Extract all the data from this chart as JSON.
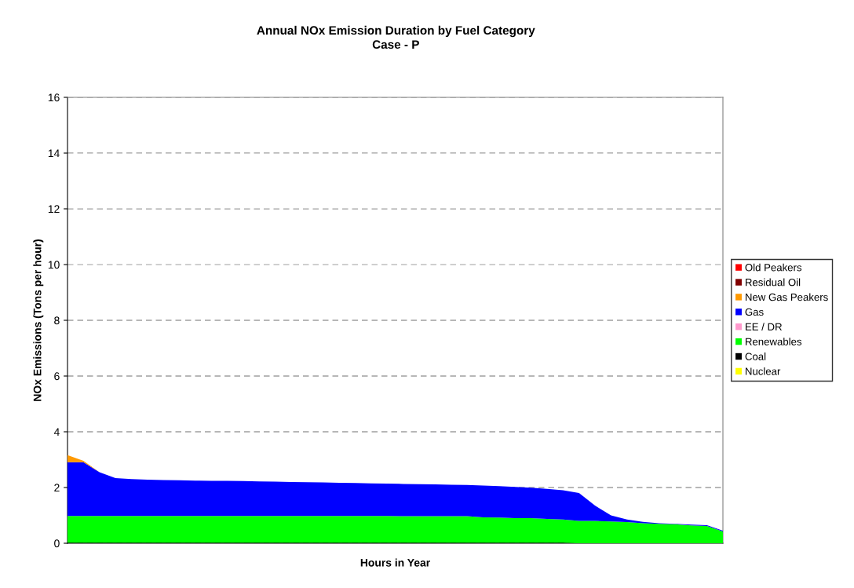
{
  "chart_data": {
    "type": "area",
    "stacked": true,
    "title": "Annual NOx Emission Duration by Fuel Category",
    "subtitle": "Case - P",
    "xlabel": "Hours in Year",
    "ylabel": "NOx Emissions (Tons per hour)",
    "categories": [
      null,
      null,
      null,
      null,
      null,
      null,
      null,
      null,
      null,
      null,
      null,
      null,
      null,
      null,
      null,
      null,
      null,
      null,
      null,
      null,
      null,
      null,
      null,
      null,
      null,
      null,
      null,
      null,
      null,
      null,
      null,
      null,
      null,
      null,
      null,
      null,
      null,
      null,
      null,
      null,
      null,
      null
    ],
    "ylim": [
      0,
      16
    ],
    "yticks": [
      0,
      2,
      4,
      6,
      8,
      10,
      12,
      14,
      16
    ],
    "grid": "y",
    "legend": "right",
    "series": [
      {
        "name": "Nuclear",
        "color": "#ffff00",
        "values": [
          null,
          null,
          null,
          null,
          null,
          null,
          null,
          null,
          null,
          null,
          null,
          null,
          null,
          null,
          null,
          null,
          null,
          null,
          null,
          null,
          null,
          null,
          null,
          null,
          null,
          null,
          null,
          null,
          null,
          null,
          null,
          null,
          null,
          null,
          null,
          null,
          null,
          null,
          null,
          null,
          null,
          null
        ]
      },
      {
        "name": "Coal",
        "color": "#000000",
        "values": [
          0.02,
          0.02,
          0.02,
          0.02,
          0.02,
          0.02,
          0.02,
          0.02,
          0.02,
          0.02,
          0.02,
          0.02,
          0.02,
          0.02,
          0.02,
          0.02,
          0.02,
          0.02,
          0.02,
          0.02,
          0.02,
          0.02,
          0.02,
          0.02,
          0.02,
          0.02,
          0.02,
          0.02,
          0.02,
          0.02,
          0.02,
          0.02,
          0,
          0,
          0,
          0,
          0,
          0,
          0,
          0,
          0,
          0
        ]
      },
      {
        "name": "Renewables",
        "color": "#00ff00",
        "values": [
          0.96,
          0.96,
          0.96,
          0.96,
          0.96,
          0.96,
          0.96,
          0.96,
          0.96,
          0.96,
          0.96,
          0.96,
          0.96,
          0.96,
          0.96,
          0.96,
          0.96,
          0.96,
          0.96,
          0.96,
          0.96,
          0.95,
          0.95,
          0.95,
          0.95,
          0.95,
          0.91,
          0.9,
          0.88,
          0.88,
          0.85,
          0.83,
          0.8,
          0.8,
          0.78,
          0.76,
          0.72,
          0.7,
          0.68,
          0.64,
          0.62,
          0.42
        ]
      },
      {
        "name": "EE / DR",
        "color": "#ff99cc",
        "values": [
          null,
          null,
          null,
          null,
          null,
          null,
          null,
          null,
          null,
          null,
          null,
          null,
          null,
          null,
          null,
          null,
          null,
          null,
          null,
          null,
          null,
          null,
          null,
          null,
          null,
          null,
          null,
          null,
          null,
          null,
          null,
          null,
          null,
          null,
          null,
          null,
          null,
          null,
          null,
          null,
          null,
          null
        ]
      },
      {
        "name": "Gas",
        "color": "#0000ff",
        "values": [
          1.93,
          1.93,
          1.57,
          1.36,
          1.32,
          1.3,
          1.29,
          1.28,
          1.27,
          1.26,
          1.26,
          1.25,
          1.24,
          1.23,
          1.22,
          1.21,
          1.2,
          1.19,
          1.18,
          1.17,
          1.16,
          1.16,
          1.15,
          1.14,
          1.13,
          1.12,
          1.14,
          1.13,
          1.12,
          1.09,
          1.08,
          1.05,
          1.0,
          0.55,
          0.22,
          0.09,
          0.05,
          0.02,
          0.02,
          0.03,
          0.03,
          0.03
        ]
      },
      {
        "name": "New Gas Peakers",
        "color": "#ff9900",
        "values": [
          0.25,
          0.05,
          0,
          0,
          0,
          0,
          0,
          0,
          0,
          0,
          0,
          0,
          0,
          0,
          0,
          0,
          0,
          0,
          0,
          0,
          0,
          0,
          0,
          0,
          0,
          0,
          0,
          0,
          0,
          0,
          0,
          0,
          0,
          0,
          0,
          0,
          0,
          0,
          0,
          0,
          0,
          0
        ]
      },
      {
        "name": "Residual Oil",
        "color": "#800000",
        "values": [
          null,
          null,
          null,
          null,
          null,
          null,
          null,
          null,
          null,
          null,
          null,
          null,
          null,
          null,
          null,
          null,
          null,
          null,
          null,
          null,
          null,
          null,
          null,
          null,
          null,
          null,
          null,
          null,
          null,
          null,
          null,
          null,
          null,
          null,
          null,
          null,
          null,
          null,
          null,
          null,
          null,
          null
        ]
      },
      {
        "name": "Old Peakers",
        "color": "#ff0000",
        "values": [
          null,
          null,
          null,
          null,
          null,
          null,
          null,
          null,
          null,
          null,
          null,
          null,
          null,
          null,
          null,
          null,
          null,
          null,
          null,
          null,
          null,
          null,
          null,
          null,
          null,
          null,
          null,
          null,
          null,
          null,
          null,
          null,
          null,
          null,
          null,
          null,
          null,
          null,
          null,
          null,
          null,
          null
        ]
      }
    ]
  }
}
